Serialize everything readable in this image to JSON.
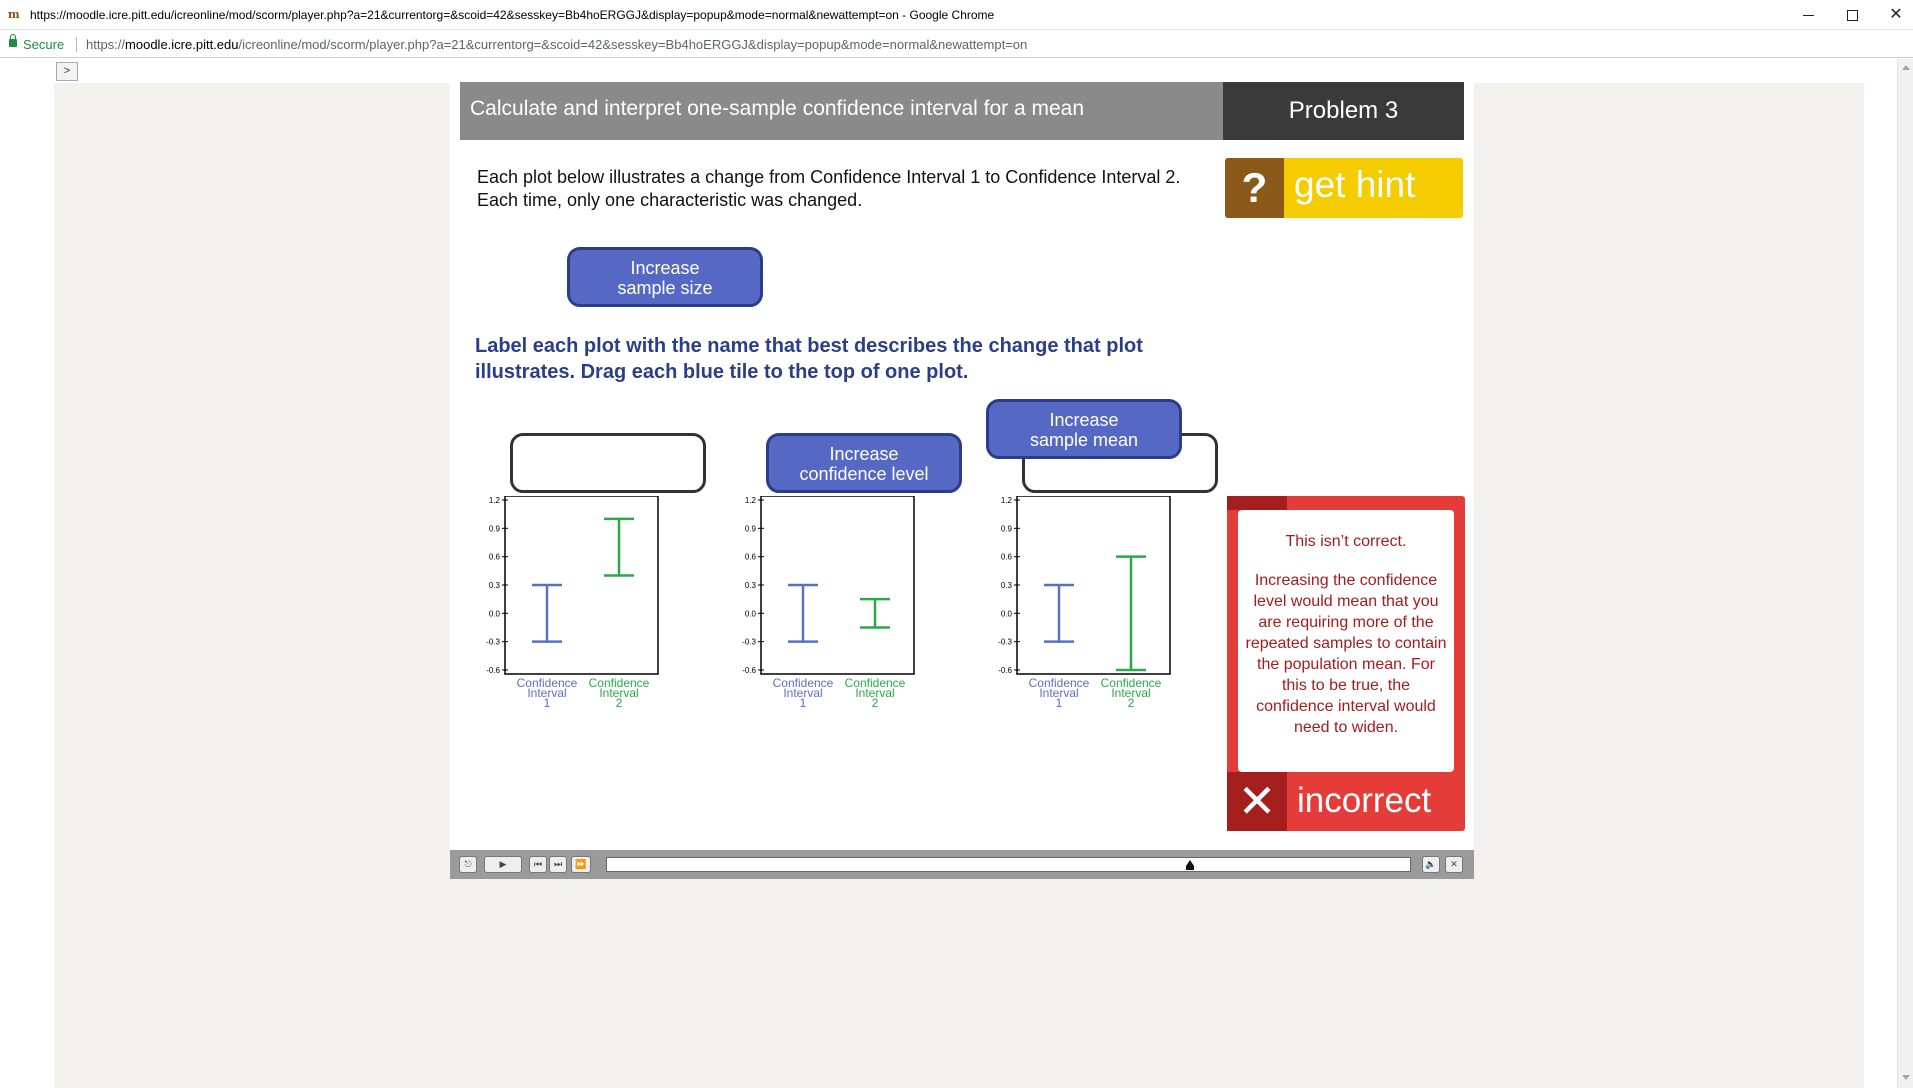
{
  "browser": {
    "window_title": "https://moodle.icre.pitt.edu/icreonline/mod/scorm/player.php?a=21&currentorg=&scoid=42&sesskey=Bb4hoERGGJ&display=popup&mode=normal&newattempt=on - Google Chrome",
    "secure_label": "Secure",
    "url_scheme": "https://",
    "url_host": "moodle.icre.pitt.edu",
    "url_path": "/icreonline/mod/scorm/player.php?a=21&currentorg=&scoid=42&sesskey=Bb4hoERGGJ&display=popup&mode=normal&newattempt=on"
  },
  "page": {
    "toggle_label": ">"
  },
  "lesson": {
    "header_title": "Calculate and interpret one-sample confidence interval for a mean",
    "problem_label": "Problem 3",
    "intro_line1": "Each plot below illustrates a change from Confidence Interval 1 to Confidence Interval 2.",
    "intro_line2": "Each time, only one characteristic was changed.",
    "hint_label": "get hint",
    "hint_icon": "?",
    "instruction_line1": "Label each plot with the name that best describes the change that plot",
    "instruction_line2": "illustrates. Drag each blue tile to the top of one plot.",
    "tiles": [
      {
        "line1": "Increase",
        "line2": "sample size"
      },
      {
        "line1": "Increase",
        "line2": "confidence level"
      },
      {
        "line1": "Increase",
        "line2": "sample mean"
      }
    ]
  },
  "feedback": {
    "title": "This isn’t correct.",
    "body": "Increasing the confidence level would mean that you are requiring more of the repeated samples to contain the population mean. For this to be true, the confidence interval would need to widen.",
    "verdict": "incorrect",
    "icon": "✕"
  },
  "colors": {
    "ci1": "#5a70c4",
    "ci2": "#2aa84a",
    "tile": "#5468c4",
    "hint": "#f5cc00",
    "feedback": "#e43c38"
  },
  "chart_data": [
    {
      "type": "errorbar",
      "categories": [
        "Confidence Interval 1",
        "Confidence Interval 2"
      ],
      "intervals": [
        {
          "low": -0.3,
          "high": 0.3
        },
        {
          "low": 0.4,
          "high": 1.0
        }
      ],
      "yticks": [
        "1.2",
        "0.9",
        "0.6",
        "0.3",
        "0.0",
        "-0.3",
        "-0.6"
      ],
      "ylim": [
        -0.6,
        1.2
      ]
    },
    {
      "type": "errorbar",
      "categories": [
        "Confidence Interval 1",
        "Confidence Interval 2"
      ],
      "intervals": [
        {
          "low": -0.3,
          "high": 0.3
        },
        {
          "low": -0.15,
          "high": 0.15
        }
      ],
      "yticks": [
        "1.2",
        "0.9",
        "0.6",
        "0.3",
        "0.0",
        "-0.3",
        "-0.6"
      ],
      "ylim": [
        -0.6,
        1.2
      ]
    },
    {
      "type": "errorbar",
      "categories": [
        "Confidence Interval 1",
        "Confidence Interval 2"
      ],
      "intervals": [
        {
          "low": -0.3,
          "high": 0.3
        },
        {
          "low": -0.6,
          "high": 0.6
        }
      ],
      "yticks": [
        "1.2",
        "0.9",
        "0.6",
        "0.3",
        "0.0",
        "-0.3",
        "-0.6"
      ],
      "ylim": [
        -0.6,
        1.2
      ]
    }
  ],
  "player": {
    "exit_icon": "⎋",
    "play_icon": "▶",
    "prev_icon": "⏮",
    "next_icon": "⏭",
    "ff_icon": "⏩",
    "volume_icon": "🔈",
    "close_icon": "✕",
    "progress": 0.74
  }
}
